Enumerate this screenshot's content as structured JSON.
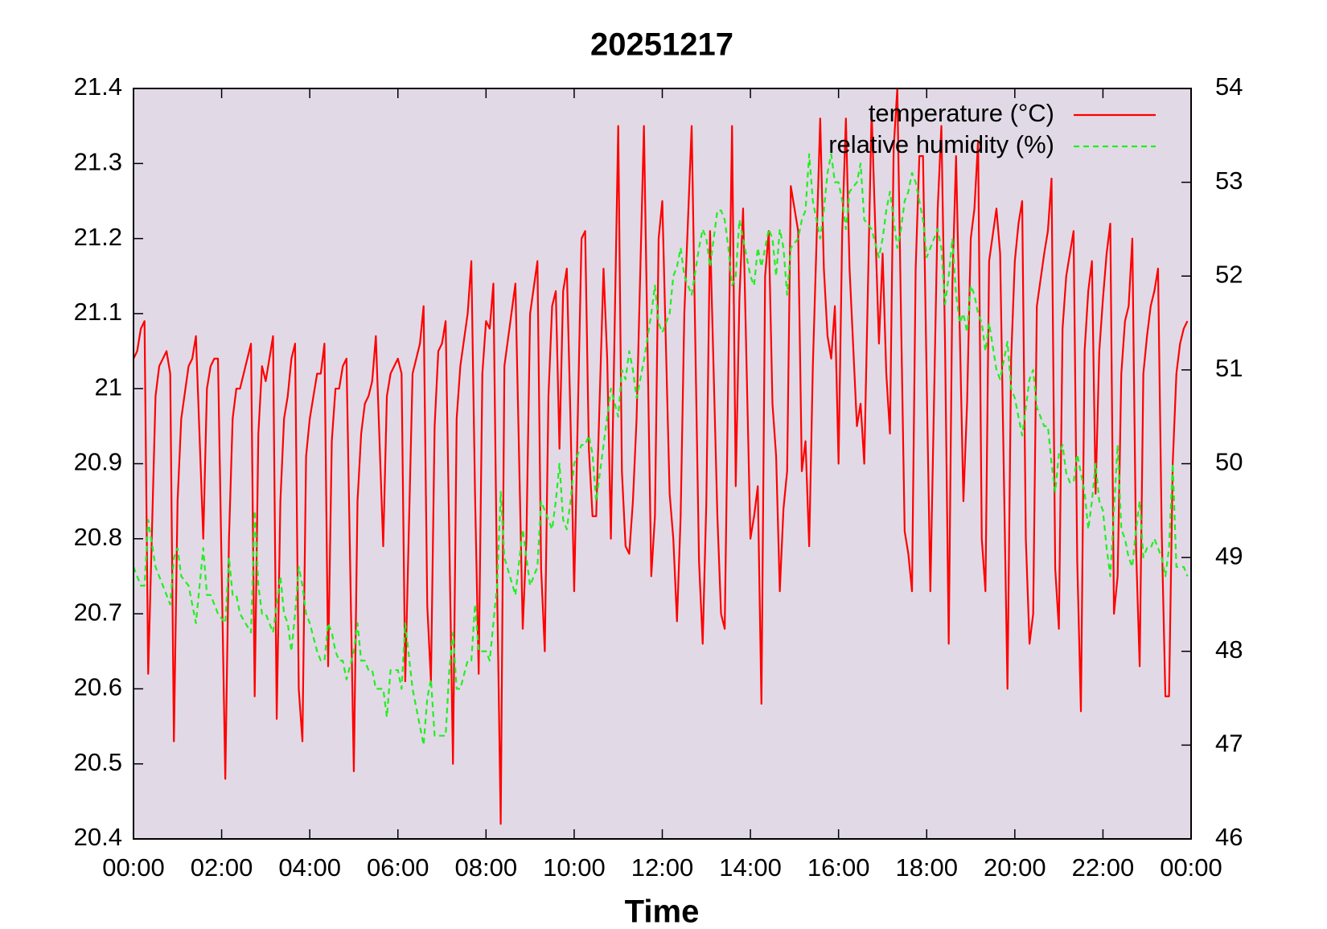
{
  "chart_data": {
    "type": "line",
    "title": "20251217",
    "xlabel": "Time",
    "xlim": [
      0,
      1440
    ],
    "xticks": [
      {
        "value": 0,
        "label": "00:00"
      },
      {
        "value": 120,
        "label": "02:00"
      },
      {
        "value": 240,
        "label": "04:00"
      },
      {
        "value": 360,
        "label": "06:00"
      },
      {
        "value": 480,
        "label": "08:00"
      },
      {
        "value": 600,
        "label": "10:00"
      },
      {
        "value": 720,
        "label": "12:00"
      },
      {
        "value": 840,
        "label": "14:00"
      },
      {
        "value": 960,
        "label": "16:00"
      },
      {
        "value": 1080,
        "label": "18:00"
      },
      {
        "value": 1200,
        "label": "20:00"
      },
      {
        "value": 1320,
        "label": "22:00"
      },
      {
        "value": 1440,
        "label": "00:00"
      }
    ],
    "ylim": [
      20.4,
      21.4
    ],
    "yticks": [
      20.4,
      20.5,
      20.6,
      20.7,
      20.8,
      20.9,
      21,
      21.1,
      21.2,
      21.3,
      21.4
    ],
    "y2lim": [
      46,
      54
    ],
    "y2ticks": [
      46,
      47,
      48,
      49,
      50,
      51,
      52,
      53,
      54
    ],
    "legend": "top right",
    "background": "#e1dae6",
    "x": [
      0,
      5,
      10,
      15,
      20,
      30,
      35,
      45,
      50,
      55,
      60,
      65,
      75,
      80,
      85,
      95,
      100,
      105,
      110,
      115,
      125,
      130,
      135,
      140,
      145,
      160,
      165,
      170,
      175,
      180,
      190,
      195,
      200,
      205,
      210,
      215,
      220,
      225,
      230,
      235,
      240,
      250,
      255,
      260,
      265,
      270,
      275,
      280,
      285,
      290,
      300,
      305,
      310,
      315,
      320,
      325,
      330,
      340,
      345,
      350,
      360,
      365,
      370,
      380,
      390,
      395,
      400,
      405,
      410,
      415,
      420,
      425,
      430,
      435,
      440,
      445,
      455,
      460,
      465,
      470,
      475,
      480,
      485,
      490,
      495,
      500,
      505,
      520,
      530,
      535,
      540,
      550,
      555,
      560,
      565,
      570,
      575,
      580,
      585,
      590,
      595,
      600,
      610,
      615,
      620,
      625,
      630,
      640,
      645,
      650,
      660,
      665,
      670,
      675,
      680,
      685,
      695,
      705,
      710,
      715,
      720,
      730,
      735,
      740,
      745,
      750,
      760,
      770,
      775,
      780,
      785,
      795,
      800,
      805,
      810,
      815,
      820,
      825,
      830,
      840,
      845,
      850,
      855,
      860,
      865,
      870,
      875,
      880,
      885,
      890,
      895,
      905,
      910,
      915,
      920,
      925,
      935,
      940,
      945,
      950,
      955,
      960,
      965,
      970,
      975,
      985,
      990,
      995,
      1005,
      1015,
      1020,
      1025,
      1030,
      1035,
      1040,
      1045,
      1050,
      1055,
      1060,
      1065,
      1070,
      1075,
      1080,
      1085,
      1095,
      1100,
      1105,
      1110,
      1115,
      1120,
      1125,
      1130,
      1135,
      1140,
      1145,
      1150,
      1155,
      1160,
      1165,
      1175,
      1180,
      1190,
      1195,
      1200,
      1205,
      1210,
      1215,
      1220,
      1225,
      1230,
      1240,
      1245,
      1250,
      1255,
      1260,
      1265,
      1270,
      1275,
      1280,
      1285,
      1290,
      1295,
      1300,
      1305,
      1310,
      1315,
      1320,
      1325,
      1330,
      1335,
      1340,
      1345,
      1350,
      1355,
      1360,
      1365,
      1370,
      1375,
      1380,
      1385,
      1390,
      1395,
      1400,
      1405,
      1410,
      1415,
      1420,
      1425,
      1430,
      1435
    ],
    "series": [
      {
        "name": "temperature (°C)",
        "color": "#ff0000",
        "dashed": false,
        "values": [
          21.04,
          21.05,
          21.08,
          21.09,
          20.62,
          20.99,
          21.03,
          21.05,
          21.02,
          20.53,
          20.85,
          20.96,
          21.03,
          21.04,
          21.07,
          20.8,
          21.0,
          21.03,
          21.04,
          21.04,
          20.48,
          20.8,
          20.96,
          21.0,
          21.0,
          21.06,
          20.59,
          20.94,
          21.03,
          21.01,
          21.07,
          20.56,
          20.85,
          20.96,
          20.99,
          21.04,
          21.06,
          20.6,
          20.53,
          20.91,
          20.96,
          21.02,
          21.02,
          21.06,
          20.63,
          20.93,
          21.0,
          21.0,
          21.03,
          21.04,
          20.49,
          20.85,
          20.94,
          20.98,
          20.99,
          21.01,
          21.07,
          20.79,
          20.99,
          21.02,
          21.04,
          21.02,
          20.61,
          21.02,
          21.06,
          21.11,
          20.71,
          20.61,
          20.95,
          21.05,
          21.06,
          21.09,
          20.8,
          20.5,
          20.96,
          21.03,
          21.1,
          21.17,
          20.86,
          20.62,
          21.02,
          21.09,
          21.08,
          21.14,
          20.74,
          20.42,
          21.03,
          21.14,
          20.68,
          20.8,
          21.1,
          21.17,
          20.76,
          20.65,
          20.99,
          21.11,
          21.13,
          20.92,
          21.13,
          21.16,
          20.96,
          20.73,
          21.2,
          21.21,
          20.92,
          20.83,
          20.83,
          21.16,
          21.04,
          20.8,
          21.35,
          20.89,
          20.79,
          20.78,
          20.85,
          20.96,
          21.35,
          20.75,
          20.83,
          21.2,
          21.25,
          20.86,
          20.8,
          20.69,
          20.83,
          21.1,
          21.35,
          20.77,
          20.66,
          20.85,
          21.21,
          20.83,
          20.7,
          20.68,
          21.03,
          21.35,
          20.87,
          21.12,
          21.24,
          20.8,
          20.83,
          20.87,
          20.58,
          21.15,
          21.21,
          20.98,
          20.91,
          20.73,
          20.84,
          20.89,
          21.27,
          21.21,
          20.89,
          20.93,
          20.79,
          21.03,
          21.36,
          21.16,
          21.07,
          21.04,
          21.11,
          20.9,
          21.21,
          21.36,
          21.16,
          20.95,
          20.98,
          20.9,
          21.37,
          21.06,
          21.18,
          21.02,
          20.94,
          21.32,
          21.4,
          21.1,
          20.81,
          20.78,
          20.73,
          21.16,
          21.31,
          21.31,
          21.01,
          20.73,
          21.24,
          21.35,
          21.06,
          20.66,
          21.14,
          21.31,
          21.08,
          20.85,
          20.98,
          21.2,
          21.24,
          21.33,
          20.8,
          20.73,
          21.17,
          21.24,
          21.18,
          20.6,
          21.04,
          21.17,
          21.22,
          21.25,
          20.8,
          20.66,
          20.7,
          21.11,
          21.18,
          21.21,
          21.28,
          20.76,
          20.68,
          21.08,
          21.15,
          21.18,
          21.21,
          20.77,
          20.57,
          21.05,
          21.13,
          21.17,
          20.86,
          21.05,
          21.12,
          21.18,
          21.22,
          20.7,
          20.75,
          21.02,
          21.09,
          21.11,
          21.2,
          20.79,
          20.63,
          21.02,
          21.07,
          21.11,
          21.13,
          21.16,
          20.81,
          20.59,
          20.59,
          20.9,
          21.02,
          21.06,
          21.08,
          21.09
        ]
      },
      {
        "name": "relative humidity (%)",
        "color": "#22ee22",
        "dashed": true,
        "axis": "y2",
        "values": [
          48.9,
          48.8,
          48.7,
          48.7,
          49.4,
          48.9,
          48.8,
          48.6,
          48.5,
          49.0,
          49.1,
          48.8,
          48.7,
          48.5,
          48.3,
          49.1,
          48.6,
          48.6,
          48.5,
          48.4,
          48.3,
          49.0,
          48.6,
          48.6,
          48.4,
          48.2,
          49.5,
          48.7,
          48.4,
          48.4,
          48.2,
          48.5,
          48.8,
          48.4,
          48.3,
          48.0,
          48.4,
          48.9,
          48.7,
          48.4,
          48.3,
          48.0,
          47.9,
          47.9,
          48.3,
          48.2,
          48.0,
          47.9,
          47.9,
          47.7,
          48.0,
          48.3,
          47.9,
          47.9,
          47.8,
          47.8,
          47.6,
          47.6,
          47.3,
          47.8,
          47.8,
          47.6,
          48.3,
          47.6,
          47.2,
          47.0,
          47.5,
          47.7,
          47.1,
          47.1,
          47.1,
          47.1,
          47.8,
          48.2,
          47.6,
          47.6,
          47.9,
          47.9,
          48.5,
          48.0,
          48.0,
          48.0,
          47.9,
          48.3,
          48.7,
          49.7,
          49.0,
          48.6,
          49.3,
          49.0,
          48.7,
          48.9,
          49.6,
          49.5,
          49.4,
          49.3,
          49.6,
          50.0,
          49.4,
          49.3,
          49.6,
          50.0,
          50.2,
          50.2,
          50.3,
          50.1,
          49.6,
          50.2,
          50.5,
          50.8,
          50.5,
          51.0,
          50.9,
          51.2,
          51.0,
          50.7,
          51.1,
          51.6,
          51.9,
          51.5,
          51.4,
          51.6,
          52.0,
          52.1,
          52.3,
          52.0,
          51.8,
          52.3,
          52.5,
          52.4,
          52.1,
          52.7,
          52.7,
          52.6,
          52.3,
          51.9,
          52.0,
          52.6,
          52.4,
          52.0,
          51.9,
          52.3,
          52.1,
          52.3,
          52.5,
          52.4,
          52.0,
          52.5,
          52.3,
          51.8,
          52.3,
          52.4,
          52.6,
          52.7,
          53.3,
          52.8,
          52.4,
          52.7,
          53.1,
          53.3,
          53.0,
          53.0,
          52.8,
          52.5,
          52.9,
          53.0,
          53.2,
          52.6,
          52.5,
          52.2,
          52.4,
          52.7,
          52.9,
          52.6,
          52.3,
          52.5,
          52.8,
          52.9,
          53.1,
          53.0,
          52.8,
          52.6,
          52.2,
          52.3,
          52.5,
          52.3,
          51.7,
          52.0,
          52.4,
          51.8,
          51.5,
          51.6,
          51.4,
          51.9,
          51.8,
          51.6,
          51.5,
          51.2,
          51.5,
          51.0,
          50.9,
          51.3,
          50.8,
          50.7,
          50.5,
          50.3,
          50.6,
          50.9,
          51.0,
          50.6,
          50.4,
          50.4,
          50.0,
          49.7,
          50.1,
          50.2,
          49.9,
          49.8,
          49.8,
          50.1,
          49.9,
          49.7,
          49.3,
          49.6,
          50.0,
          49.6,
          49.5,
          49.1,
          48.8,
          49.5,
          50.2,
          49.3,
          49.2,
          49.0,
          48.9,
          49.3,
          49.6,
          49.0,
          49.1,
          49.1,
          49.2,
          49.1,
          49.0,
          48.8,
          49.1,
          50.0,
          48.9,
          48.9,
          48.9,
          48.8
        ]
      }
    ]
  }
}
